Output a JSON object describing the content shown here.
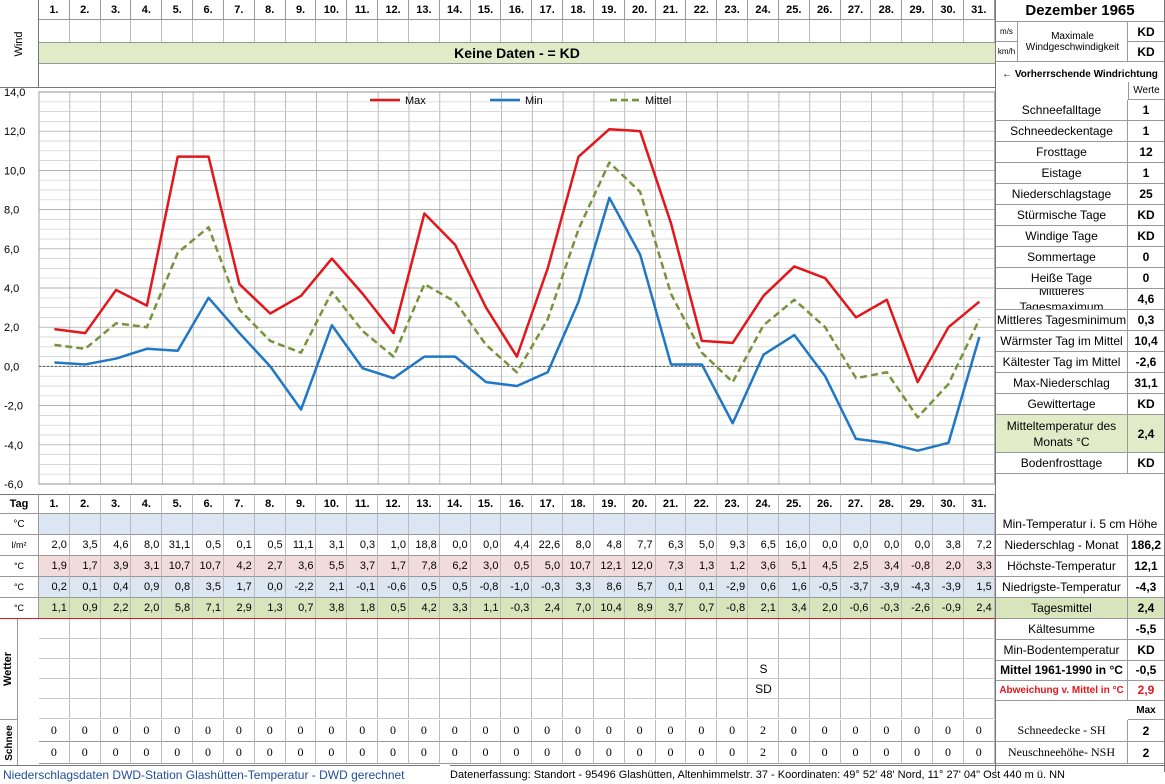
{
  "header": {
    "month_title": "Dezember 1965",
    "wind_label": "Wind",
    "unit_ms": "m/s",
    "unit_kmh": "km/h",
    "max_wind_label": "Maximale Windgeschwindigkeit",
    "no_data_banner": "Keine Daten -  = KD",
    "max_ms": "KD",
    "max_kmh": "KD",
    "wind_direction_label": "← Vorherrschende Windrichtung",
    "werte_label": "Werte"
  },
  "days": [
    "1.",
    "2.",
    "3.",
    "4.",
    "5.",
    "6.",
    "7.",
    "8.",
    "9.",
    "10.",
    "11.",
    "12.",
    "13.",
    "14.",
    "15.",
    "16.",
    "17.",
    "18.",
    "19.",
    "20.",
    "21.",
    "22.",
    "23.",
    "24.",
    "25.",
    "26.",
    "27.",
    "28.",
    "29.",
    "30.",
    "31."
  ],
  "chart_data": {
    "type": "line",
    "x": [
      1,
      2,
      3,
      4,
      5,
      6,
      7,
      8,
      9,
      10,
      11,
      12,
      13,
      14,
      15,
      16,
      17,
      18,
      19,
      20,
      21,
      22,
      23,
      24,
      25,
      26,
      27,
      28,
      29,
      30,
      31
    ],
    "ylim": [
      -6,
      14
    ],
    "yticks": [
      "14,0",
      "12,0",
      "10,0",
      "8,0",
      "6,0",
      "4,0",
      "2,0",
      "0,0",
      "-2,0",
      "-4,0",
      "-6,0"
    ],
    "grid": true,
    "legend_position": "top",
    "series": [
      {
        "name": "Max",
        "color": "#e3161b",
        "values": [
          1.9,
          1.7,
          3.9,
          3.1,
          10.7,
          10.7,
          4.2,
          2.7,
          3.6,
          5.5,
          3.7,
          1.7,
          7.8,
          6.2,
          3.0,
          0.5,
          5.0,
          10.7,
          12.1,
          12.0,
          7.3,
          1.3,
          1.2,
          3.6,
          5.1,
          4.5,
          2.5,
          3.4,
          -0.8,
          2.0,
          3.3
        ]
      },
      {
        "name": "Min",
        "color": "#1f77c6",
        "values": [
          0.2,
          0.1,
          0.4,
          0.9,
          0.8,
          3.5,
          1.7,
          0.0,
          -2.2,
          2.1,
          -0.1,
          -0.6,
          0.5,
          0.5,
          -0.8,
          -1.0,
          -0.3,
          3.3,
          8.6,
          5.7,
          0.1,
          0.1,
          -2.9,
          0.6,
          1.6,
          -0.5,
          -3.7,
          -3.9,
          -4.3,
          -3.9,
          1.5
        ]
      },
      {
        "name": "Mittel",
        "color": "#77933c",
        "values": [
          1.1,
          0.9,
          2.2,
          2.0,
          5.8,
          7.1,
          2.9,
          1.3,
          0.7,
          3.8,
          1.8,
          0.5,
          4.2,
          3.3,
          1.1,
          -0.3,
          2.4,
          7.0,
          10.4,
          8.9,
          3.7,
          0.7,
          -0.8,
          2.1,
          3.4,
          2.0,
          -0.6,
          -0.3,
          -2.6,
          -0.9,
          2.4
        ]
      }
    ]
  },
  "stats": [
    {
      "label": "Schneefalltage",
      "value": "1"
    },
    {
      "label": "Schneedeckentage",
      "value": "1"
    },
    {
      "label": "Frosttage",
      "value": "12"
    },
    {
      "label": "Eistage",
      "value": "1"
    },
    {
      "label": "Niederschlagstage",
      "value": "25"
    },
    {
      "label": "Stürmische Tage",
      "value": "KD"
    },
    {
      "label": "Windige Tage",
      "value": "KD"
    },
    {
      "label": "Sommertage",
      "value": "0"
    },
    {
      "label": "Heiße Tage",
      "value": "0"
    },
    {
      "label": "Mittleres Tagesmaximum",
      "value": "4,6"
    },
    {
      "label": "Mittleres Tagesminimum",
      "value": "0,3"
    },
    {
      "label": "Wärmster Tag im Mittel",
      "value": "10,4"
    },
    {
      "label": "Kältester Tag im Mittel",
      "value": "-2,6"
    },
    {
      "label": "Max-Niederschlag",
      "value": "31,1"
    },
    {
      "label": "Gewittertage",
      "value": "KD"
    },
    {
      "label": "Mitteltemperatur des Monats °C",
      "value": "2,4"
    },
    {
      "label": "Bodenfrosttage",
      "value": "KD"
    }
  ],
  "table": {
    "tag_label": "Tag",
    "unit_c": "°C",
    "unit_lm2": "l/m²",
    "min5cm_label": "Min-Temperatur i. 5 cm Höhe",
    "rows": [
      {
        "key": "nied",
        "label": "Niederschlag - Monat",
        "total": "186,2",
        "values": [
          "2,0",
          "3,5",
          "4,6",
          "8,0",
          "31,1",
          "0,5",
          "0,1",
          "0,5",
          "11,1",
          "3,1",
          "0,3",
          "1,0",
          "18,8",
          "0,0",
          "0,0",
          "4,4",
          "22,6",
          "8,0",
          "4,8",
          "7,7",
          "6,3",
          "5,0",
          "9,3",
          "6,5",
          "16,0",
          "0,0",
          "0,0",
          "0,0",
          "0,0",
          "3,8",
          "7,2"
        ]
      },
      {
        "key": "max",
        "label": "Höchste-Temperatur",
        "total": "12,1",
        "values": [
          "1,9",
          "1,7",
          "3,9",
          "3,1",
          "10,7",
          "10,7",
          "4,2",
          "2,7",
          "3,6",
          "5,5",
          "3,7",
          "1,7",
          "7,8",
          "6,2",
          "3,0",
          "0,5",
          "5,0",
          "10,7",
          "12,1",
          "12,0",
          "7,3",
          "1,3",
          "1,2",
          "3,6",
          "5,1",
          "4,5",
          "2,5",
          "3,4",
          "-0,8",
          "2,0",
          "3,3"
        ]
      },
      {
        "key": "min",
        "label": "Niedrigste-Temperatur",
        "total": "-4,3",
        "values": [
          "0,2",
          "0,1",
          "0,4",
          "0,9",
          "0,8",
          "3,5",
          "1,7",
          "0,0",
          "-2,2",
          "2,1",
          "-0,1",
          "-0,6",
          "0,5",
          "0,5",
          "-0,8",
          "-1,0",
          "-0,3",
          "3,3",
          "8,6",
          "5,7",
          "0,1",
          "0,1",
          "-2,9",
          "0,6",
          "1,6",
          "-0,5",
          "-3,7",
          "-3,9",
          "-4,3",
          "-3,9",
          "1,5"
        ]
      },
      {
        "key": "mit",
        "label": "Tagesmittel",
        "total": "2,4",
        "values": [
          "1,1",
          "0,9",
          "2,2",
          "2,0",
          "5,8",
          "7,1",
          "2,9",
          "1,3",
          "0,7",
          "3,8",
          "1,8",
          "0,5",
          "4,2",
          "3,3",
          "1,1",
          "-0,3",
          "2,4",
          "7,0",
          "10,4",
          "8,9",
          "3,7",
          "0,7",
          "-0,8",
          "2,1",
          "3,4",
          "2,0",
          "-0,6",
          "-0,3",
          "-2,6",
          "-0,9",
          "2,4"
        ]
      }
    ],
    "kaeltesumme_label": "Kältesumme",
    "kaeltesumme_value": "-5,5",
    "min_boden_label": "Min-Bodentemperatur",
    "min_boden_value": "KD",
    "mittel6190_label": "Mittel 1961-1990 in °C",
    "mittel6190_value": "-0,5",
    "abweichung_label": "Abweichung v. Mittel in °C",
    "abweichung_value": "2,9",
    "max_label": "Max",
    "wetter_label": "Wetter",
    "wetter_s": "S",
    "wetter_sd": "SD",
    "schnee_label": "Schnee",
    "sh_label": "Schneedecke -  SH",
    "sh_value": "2",
    "nsh_label": "Neuschneehöhe- NSH",
    "nsh_value": "2",
    "sh_values": [
      "0",
      "0",
      "0",
      "0",
      "0",
      "0",
      "0",
      "0",
      "0",
      "0",
      "0",
      "0",
      "0",
      "0",
      "0",
      "0",
      "0",
      "0",
      "0",
      "0",
      "0",
      "0",
      "0",
      "2",
      "0",
      "0",
      "0",
      "0",
      "0",
      "0",
      "0"
    ],
    "nsh_values": [
      "0",
      "0",
      "0",
      "0",
      "0",
      "0",
      "0",
      "0",
      "0",
      "0",
      "0",
      "0",
      "0",
      "0",
      "0",
      "0",
      "0",
      "0",
      "0",
      "0",
      "0",
      "0",
      "0",
      "2",
      "0",
      "0",
      "0",
      "0",
      "0",
      "0",
      "0"
    ]
  },
  "footer": {
    "left": "Niederschlagsdaten DWD-Station Glashütten-Temperatur -  DWD gerechnet",
    "right": "Datenerfassung: Standort -  95496  Glashütten, Altenhimmelstr. 37 - Koordinaten: 49° 52' 48' Nord,  11° 27' 04\" Ost  440 m ü. NN"
  }
}
